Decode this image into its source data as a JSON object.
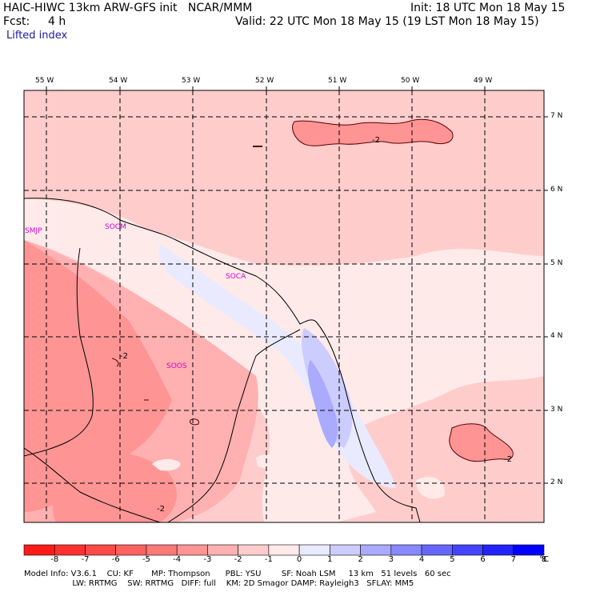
{
  "header": {
    "title_left": "HAIC-HIWC 13km ARW-GFS init   NCAR/MMM",
    "fcst_label": "Fcst:",
    "fcst_value": "4 h",
    "field_name": "Lifted index",
    "init": "Init: 18 UTC Mon 18 May 15",
    "valid": "Valid: 22 UTC Mon 18 May 15 (19 LST Mon 18 May 15)"
  },
  "map": {
    "lon_labels": [
      "55 W",
      "54 W",
      "53 W",
      "52 W",
      "51 W",
      "50 W",
      "49 W"
    ],
    "lat_labels": [
      "7 N",
      "6 N",
      "5 N",
      "4 N",
      "3 N",
      "2 N"
    ],
    "stations": [
      "SMJP",
      "SOCM",
      "SOCA",
      "SOOS"
    ],
    "contour_labels": [
      "-2",
      "-2",
      "-2",
      "-2"
    ]
  },
  "colorbar": {
    "ticks": [
      "-8",
      "-7",
      "-6",
      "-5",
      "-4",
      "-3",
      "-2",
      "-1",
      "0",
      "1",
      "2",
      "3",
      "4",
      "5",
      "6",
      "7",
      "8"
    ],
    "unit": "°C",
    "colors": [
      "#ff1a1a",
      "#ff3030",
      "#ff4848",
      "#ff6060",
      "#ff7878",
      "#ff9494",
      "#ffb0b0",
      "#ffcccc",
      "#ffeaea",
      "#eaeaff",
      "#ccccff",
      "#aaaaff",
      "#8888ff",
      "#6666ff",
      "#4444ff",
      "#2222ff",
      "#0000ff"
    ]
  },
  "model_info": {
    "line1": "Model Info: V3.6.1    CU: KF       MP: Thompson      PBL: YSU        SF: Noah LSM     13 km   51 levels   60 sec",
    "line2": "                   LW: RRTMG    SW: RRTMG   DIFF: full    KM: 2D Smagor DAMP: Rayleigh3   SFLAY: MM5"
  }
}
